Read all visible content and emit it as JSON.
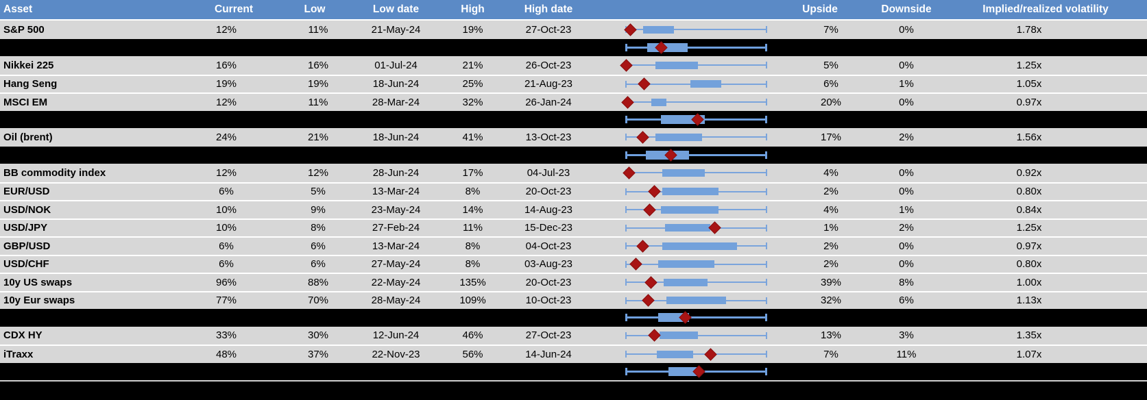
{
  "colors": {
    "header_bg": "#5B8AC6",
    "header_text": "#FFFFFF",
    "row_bg": "#D7D7D7",
    "separator_row_bg": "#000000",
    "gridline": "#FFFFFF",
    "box_fill": "#73A1DB",
    "whisker": "#7AA4DC",
    "marker_diamond": "#A81414",
    "footer_line": "#D0D0D0"
  },
  "chart_data": {
    "type": "table",
    "title": "",
    "description": "Asset volatility table with embedded box-and-whisker range plots; red diamond marks current level; box positions normalized 0-1 across plot axis",
    "legend_position": "none",
    "grid": "off",
    "columns": [
      {
        "key": "asset",
        "label": "Asset"
      },
      {
        "key": "current",
        "label": "Current"
      },
      {
        "key": "low",
        "label": "Low"
      },
      {
        "key": "low_date",
        "label": "Low date"
      },
      {
        "key": "high",
        "label": "High"
      },
      {
        "key": "high_date",
        "label": "High date"
      },
      {
        "key": "range_plot",
        "label": ""
      },
      {
        "key": "upside",
        "label": "Upside"
      },
      {
        "key": "downside",
        "label": "Downside"
      },
      {
        "key": "implied_realized",
        "label": "Implied/realized volatility"
      }
    ],
    "rows": [
      {
        "kind": "data",
        "asset": "S&P 500",
        "current": "12%",
        "low": "11%",
        "low_date": "21-May-24",
        "high": "19%",
        "high_date": "27-Oct-23",
        "upside": "7%",
        "downside": "0%",
        "implied_realized": "1.78x",
        "box": {
          "min": 0,
          "q1": 0.12,
          "q3": 0.34,
          "max": 1,
          "marker": 0.03
        }
      },
      {
        "kind": "aggregate",
        "asset": "",
        "current": "",
        "low": "",
        "low_date": "",
        "high": "",
        "high_date": "",
        "upside": "",
        "downside": "",
        "implied_realized": "",
        "box": {
          "min": 0,
          "q1": 0.15,
          "q3": 0.44,
          "max": 1,
          "marker": 0.25
        }
      },
      {
        "kind": "data",
        "asset": "Nikkei 225",
        "current": "16%",
        "low": "16%",
        "low_date": "01-Jul-24",
        "high": "21%",
        "high_date": "26-Oct-23",
        "upside": "5%",
        "downside": "0%",
        "implied_realized": "1.25x",
        "box": {
          "min": 0,
          "q1": 0.21,
          "q3": 0.51,
          "max": 1,
          "marker": 0.0
        }
      },
      {
        "kind": "data",
        "asset": "Hang Seng",
        "current": "19%",
        "low": "19%",
        "low_date": "18-Jun-24",
        "high": "25%",
        "high_date": "21-Aug-23",
        "upside": "6%",
        "downside": "1%",
        "implied_realized": "1.05x",
        "box": {
          "min": 0,
          "q1": 0.46,
          "q3": 0.68,
          "max": 1,
          "marker": 0.13
        }
      },
      {
        "kind": "data",
        "asset": "MSCI EM",
        "current": "12%",
        "low": "11%",
        "low_date": "28-Mar-24",
        "high": "32%",
        "high_date": "26-Jan-24",
        "upside": "20%",
        "downside": "0%",
        "implied_realized": "0.97x",
        "box": {
          "min": 0,
          "q1": 0.18,
          "q3": 0.29,
          "max": 1,
          "marker": 0.01
        }
      },
      {
        "kind": "aggregate",
        "asset": "",
        "current": "",
        "low": "",
        "low_date": "",
        "high": "",
        "high_date": "",
        "upside": "",
        "downside": "",
        "implied_realized": "",
        "box": {
          "min": 0,
          "q1": 0.25,
          "q3": 0.56,
          "max": 1,
          "marker": 0.51
        }
      },
      {
        "kind": "data",
        "asset": "Oil (brent)",
        "current": "24%",
        "low": "21%",
        "low_date": "18-Jun-24",
        "high": "41%",
        "high_date": "13-Oct-23",
        "upside": "17%",
        "downside": "2%",
        "implied_realized": "1.56x",
        "box": {
          "min": 0,
          "q1": 0.21,
          "q3": 0.54,
          "max": 1,
          "marker": 0.12
        }
      },
      {
        "kind": "aggregate",
        "asset": "",
        "current": "",
        "low": "",
        "low_date": "",
        "high": "",
        "high_date": "",
        "upside": "",
        "downside": "",
        "implied_realized": "",
        "box": {
          "min": 0,
          "q1": 0.14,
          "q3": 0.45,
          "max": 1,
          "marker": 0.32
        }
      },
      {
        "kind": "data",
        "asset": "BB commodity index",
        "current": "12%",
        "low": "12%",
        "low_date": "28-Jun-24",
        "high": "17%",
        "high_date": "04-Jul-23",
        "upside": "4%",
        "downside": "0%",
        "implied_realized": "0.92x",
        "box": {
          "min": 0,
          "q1": 0.26,
          "q3": 0.56,
          "max": 1,
          "marker": 0.02
        }
      },
      {
        "kind": "data",
        "asset": "EUR/USD",
        "current": "6%",
        "low": "5%",
        "low_date": "13-Mar-24",
        "high": "8%",
        "high_date": "20-Oct-23",
        "upside": "2%",
        "downside": "0%",
        "implied_realized": "0.80x",
        "box": {
          "min": 0,
          "q1": 0.26,
          "q3": 0.66,
          "max": 1,
          "marker": 0.2
        }
      },
      {
        "kind": "data",
        "asset": "USD/NOK",
        "current": "10%",
        "low": "9%",
        "low_date": "23-May-24",
        "high": "14%",
        "high_date": "14-Aug-23",
        "upside": "4%",
        "downside": "1%",
        "implied_realized": "0.84x",
        "box": {
          "min": 0,
          "q1": 0.25,
          "q3": 0.66,
          "max": 1,
          "marker": 0.17
        }
      },
      {
        "kind": "data",
        "asset": "USD/JPY",
        "current": "10%",
        "low": "8%",
        "low_date": "27-Feb-24",
        "high": "11%",
        "high_date": "15-Dec-23",
        "upside": "1%",
        "downside": "2%",
        "implied_realized": "1.25x",
        "box": {
          "min": 0,
          "q1": 0.28,
          "q3": 0.6,
          "max": 1,
          "marker": 0.63
        }
      },
      {
        "kind": "data",
        "asset": "GBP/USD",
        "current": "6%",
        "low": "6%",
        "low_date": "13-Mar-24",
        "high": "8%",
        "high_date": "04-Oct-23",
        "upside": "2%",
        "downside": "0%",
        "implied_realized": "0.97x",
        "box": {
          "min": 0,
          "q1": 0.26,
          "q3": 0.79,
          "max": 1,
          "marker": 0.12
        }
      },
      {
        "kind": "data",
        "asset": "USD/CHF",
        "current": "6%",
        "low": "6%",
        "low_date": "27-May-24",
        "high": "8%",
        "high_date": "03-Aug-23",
        "upside": "2%",
        "downside": "0%",
        "implied_realized": "0.80x",
        "box": {
          "min": 0,
          "q1": 0.23,
          "q3": 0.63,
          "max": 1,
          "marker": 0.07
        }
      },
      {
        "kind": "data",
        "asset": "10y US swaps",
        "current": "96%",
        "low": "88%",
        "low_date": "22-May-24",
        "high": "135%",
        "high_date": "20-Oct-23",
        "upside": "39%",
        "downside": "8%",
        "implied_realized": "1.00x",
        "box": {
          "min": 0,
          "q1": 0.27,
          "q3": 0.58,
          "max": 1,
          "marker": 0.18
        }
      },
      {
        "kind": "data",
        "asset": "10y Eur swaps",
        "current": "77%",
        "low": "70%",
        "low_date": "28-May-24",
        "high": "109%",
        "high_date": "10-Oct-23",
        "upside": "32%",
        "downside": "6%",
        "implied_realized": "1.13x",
        "box": {
          "min": 0,
          "q1": 0.29,
          "q3": 0.71,
          "max": 1,
          "marker": 0.16
        }
      },
      {
        "kind": "aggregate",
        "asset": "",
        "current": "",
        "low": "",
        "low_date": "",
        "high": "",
        "high_date": "",
        "upside": "",
        "downside": "",
        "implied_realized": "",
        "box": {
          "min": 0,
          "q1": 0.23,
          "q3": 0.45,
          "max": 1,
          "marker": 0.42
        }
      },
      {
        "kind": "data",
        "asset": "CDX HY",
        "current": "33%",
        "low": "30%",
        "low_date": "12-Jun-24",
        "high": "46%",
        "high_date": "27-Oct-23",
        "upside": "13%",
        "downside": "3%",
        "implied_realized": "1.35x",
        "box": {
          "min": 0,
          "q1": 0.24,
          "q3": 0.51,
          "max": 1,
          "marker": 0.2
        }
      },
      {
        "kind": "data",
        "asset": "iTraxx",
        "current": "48%",
        "low": "37%",
        "low_date": "22-Nov-23",
        "high": "56%",
        "high_date": "14-Jun-24",
        "upside": "7%",
        "downside": "11%",
        "implied_realized": "1.07x",
        "box": {
          "min": 0,
          "q1": 0.22,
          "q3": 0.48,
          "max": 1,
          "marker": 0.6
        }
      },
      {
        "kind": "aggregate",
        "asset": "",
        "current": "",
        "low": "",
        "low_date": "",
        "high": "",
        "high_date": "",
        "upside": "",
        "downside": "",
        "implied_realized": "",
        "box": {
          "min": 0,
          "q1": 0.3,
          "q3": 0.51,
          "max": 1,
          "marker": 0.52
        }
      }
    ]
  }
}
